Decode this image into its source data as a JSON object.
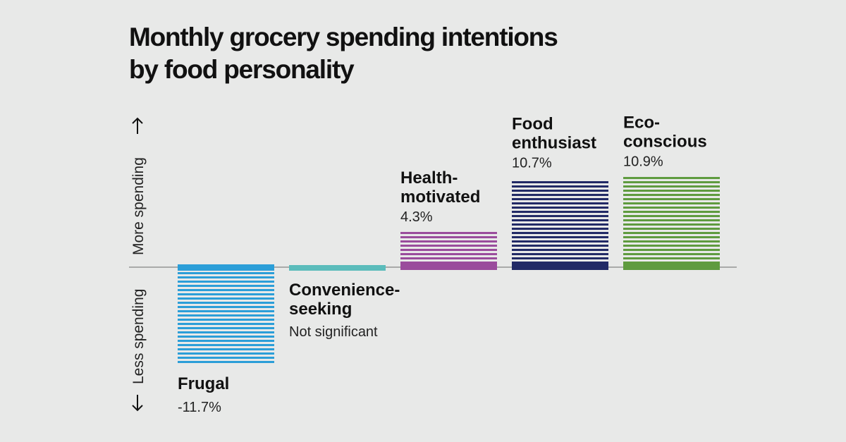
{
  "chart_data": {
    "type": "bar",
    "title_lines": [
      "Monthly grocery spending intentions",
      "by food personality"
    ],
    "axis_up_label": "More spending",
    "axis_down_label": "Less spending",
    "ylim": [
      -11.7,
      10.9
    ],
    "categories": [
      {
        "name_lines": [
          "Frugal"
        ],
        "value": -11.7,
        "value_label": "-11.7%",
        "color": "#2b9ed8",
        "significant": true
      },
      {
        "name_lines": [
          "Convenience-",
          "seeking"
        ],
        "value": 0,
        "value_label": "Not significant",
        "color": "#5bbcbb",
        "significant": false
      },
      {
        "name_lines": [
          "Health-",
          "motivated"
        ],
        "value": 4.3,
        "value_label": "4.3%",
        "color": "#9a4c9c",
        "significant": true
      },
      {
        "name_lines": [
          "Food",
          "enthusiast"
        ],
        "value": 10.7,
        "value_label": "10.7%",
        "color": "#222a66",
        "significant": true
      },
      {
        "name_lines": [
          "Eco-",
          "conscious"
        ],
        "value": 10.9,
        "value_label": "10.9%",
        "color": "#5f9b3f",
        "significant": true
      }
    ]
  }
}
